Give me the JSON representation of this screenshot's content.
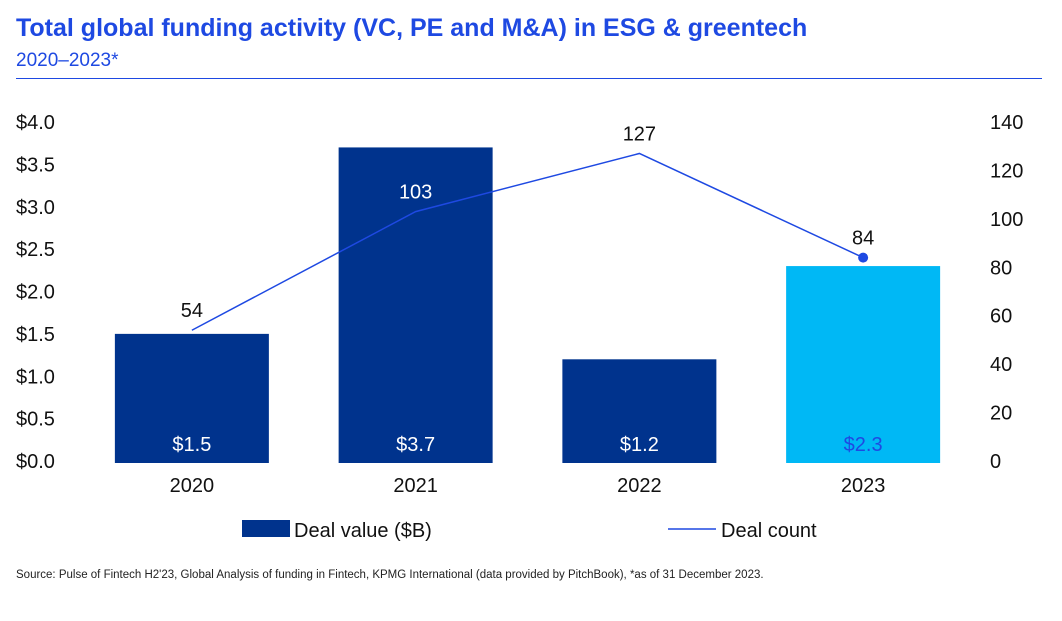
{
  "header": {
    "title": "Total global funding activity (VC, PE and M&A) in ESG & greentech",
    "subtitle": "2020–2023*"
  },
  "chart_data": {
    "type": "bar",
    "categories": [
      "2020",
      "2021",
      "2022",
      "2023"
    ],
    "series": [
      {
        "name": "Deal value ($B)",
        "kind": "bar",
        "axis": "left",
        "values": [
          1.5,
          3.7,
          1.2,
          2.3
        ],
        "value_labels": [
          "$1.5",
          "$3.7",
          "$1.2",
          "$2.3"
        ],
        "colors": [
          "#00338d",
          "#00338d",
          "#00338d",
          "#00b8f5"
        ],
        "label_colors": [
          "#ffffff",
          "#ffffff",
          "#ffffff",
          "#1e49e2"
        ]
      },
      {
        "name": "Deal count",
        "kind": "line",
        "axis": "right",
        "values": [
          54,
          103,
          127,
          84
        ],
        "value_labels": [
          "54",
          "103",
          "127",
          "84"
        ],
        "color": "#1e49e2",
        "marker_on_last": true
      }
    ],
    "y_left": {
      "ylim": [
        0,
        4.0
      ],
      "ticks": [
        0,
        0.5,
        1.0,
        1.5,
        2.0,
        2.5,
        3.0,
        3.5,
        4.0
      ],
      "tick_labels": [
        "$0.0",
        "$0.5",
        "$1.0",
        "$1.5",
        "$2.0",
        "$2.5",
        "$3.0",
        "$3.5",
        "$4.0"
      ]
    },
    "y_right": {
      "ylim": [
        0,
        140
      ],
      "ticks": [
        0,
        20,
        40,
        60,
        80,
        100,
        120,
        140
      ],
      "tick_labels": [
        "0",
        "20",
        "40",
        "60",
        "80",
        "100",
        "120",
        "140"
      ]
    },
    "grid": false,
    "legend": {
      "position": "bottom",
      "items": [
        {
          "label": "Deal value ($B)",
          "type": "bar",
          "color": "#00338d"
        },
        {
          "label": "Deal count",
          "type": "line",
          "color": "#1e49e2"
        }
      ]
    }
  },
  "footer": {
    "source": "Source: Pulse of Fintech H2'23, Global Analysis of funding in Fintech, KPMG International (data provided by PitchBook), *as of 31 December 2023."
  }
}
